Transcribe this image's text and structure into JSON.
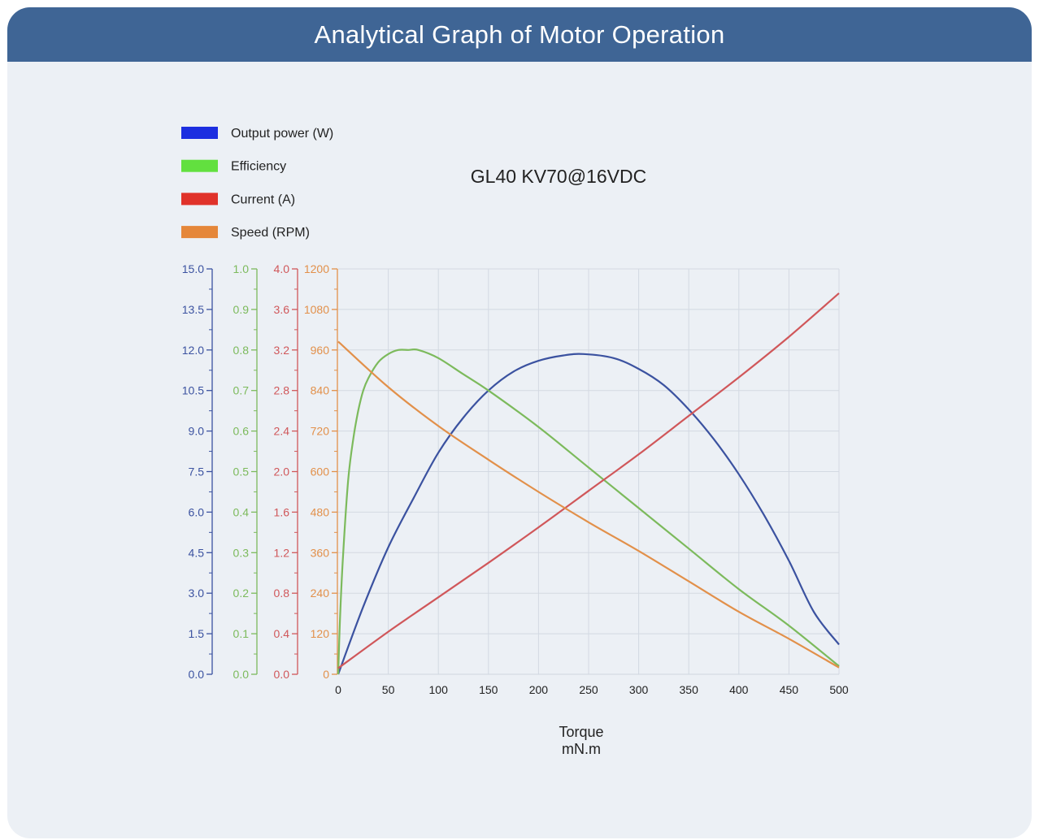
{
  "header": {
    "title": "Analytical Graph of Motor Operation"
  },
  "chart_data": {
    "type": "line",
    "title": "GL40 KV70@16VDC",
    "xlabel": "Torque",
    "xunit": "mN.m",
    "xlim": [
      0,
      500
    ],
    "x_ticks": [
      "0",
      "50",
      "100",
      "150",
      "200",
      "250",
      "300",
      "350",
      "400",
      "450",
      "500"
    ],
    "grid": true,
    "legend_position": "top-left",
    "y_axes": [
      {
        "series": "Output power (W)",
        "color": "#3b52a0",
        "lim": [
          0,
          15
        ],
        "ticks": [
          "0.0",
          "1.5",
          "3.0",
          "4.5",
          "6.0",
          "7.5",
          "9.0",
          "10.5",
          "12.0",
          "13.5",
          "15.0"
        ]
      },
      {
        "series": "Efficiency",
        "color": "#7cba5c",
        "lim": [
          0,
          1
        ],
        "ticks": [
          "0.0",
          "0.1",
          "0.2",
          "0.3",
          "0.4",
          "0.5",
          "0.6",
          "0.7",
          "0.8",
          "0.9",
          "1.0"
        ]
      },
      {
        "series": "Current (A)",
        "color": "#d0575a",
        "lim": [
          0,
          4
        ],
        "ticks": [
          "0.0",
          "0.4",
          "0.8",
          "1.2",
          "1.6",
          "2.0",
          "2.4",
          "2.8",
          "3.2",
          "3.6",
          "4.0"
        ]
      },
      {
        "series": "Speed (RPM)",
        "color": "#e2904a",
        "lim": [
          0,
          1200
        ],
        "ticks": [
          "0",
          "120",
          "240",
          "360",
          "480",
          "600",
          "720",
          "840",
          "960",
          "1080",
          "1200"
        ]
      }
    ],
    "legend": [
      {
        "label": "Output power (W)",
        "color": "#1c2ee0"
      },
      {
        "label": "Efficiency",
        "color": "#62e03f"
      },
      {
        "label": "Current (A)",
        "color": "#e0322a"
      },
      {
        "label": "Speed (RPM)",
        "color": "#e5873a"
      }
    ],
    "series": [
      {
        "name": "Output power (W)",
        "color": "#3b52a0",
        "x": [
          0,
          25,
          50,
          75,
          100,
          125,
          150,
          175,
          200,
          225,
          245,
          275,
          300,
          325,
          350,
          375,
          400,
          425,
          450,
          475,
          500
        ],
        "values": [
          0,
          2.5,
          4.7,
          6.5,
          8.2,
          9.5,
          10.5,
          11.2,
          11.6,
          11.8,
          11.85,
          11.7,
          11.3,
          10.7,
          9.8,
          8.7,
          7.4,
          5.9,
          4.2,
          2.3,
          1.1
        ]
      },
      {
        "name": "Efficiency",
        "color": "#7cba5c",
        "x": [
          0,
          2,
          5,
          10,
          15,
          20,
          25,
          30,
          40,
          50,
          60,
          70,
          80,
          100,
          125,
          150,
          200,
          250,
          300,
          350,
          400,
          450,
          500
        ],
        "values": [
          0,
          0.15,
          0.3,
          0.48,
          0.58,
          0.65,
          0.7,
          0.73,
          0.77,
          0.79,
          0.8,
          0.8,
          0.8,
          0.78,
          0.74,
          0.7,
          0.61,
          0.51,
          0.41,
          0.31,
          0.21,
          0.12,
          0.02
        ]
      },
      {
        "name": "Current (A)",
        "color": "#d0575a",
        "x": [
          0,
          50,
          100,
          150,
          200,
          250,
          300,
          350,
          400,
          450,
          500
        ],
        "values": [
          0.06,
          0.42,
          0.76,
          1.1,
          1.45,
          1.81,
          2.17,
          2.55,
          2.93,
          3.33,
          3.76
        ]
      },
      {
        "name": "Speed (RPM)",
        "color": "#e2904a",
        "x": [
          0,
          50,
          100,
          150,
          200,
          250,
          300,
          350,
          400,
          450,
          500
        ],
        "values": [
          985,
          850,
          735,
          635,
          540,
          450,
          365,
          275,
          185,
          105,
          20
        ]
      }
    ]
  }
}
